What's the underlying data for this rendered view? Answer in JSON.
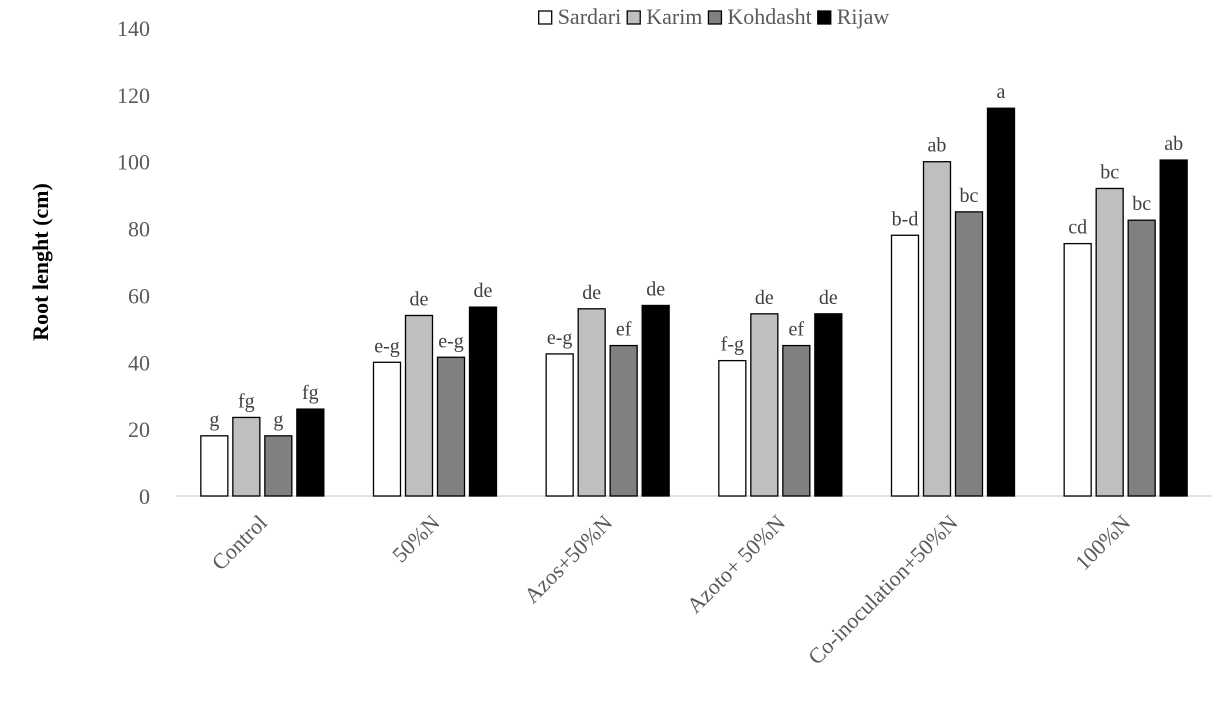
{
  "chart_data": {
    "type": "bar",
    "title": "",
    "xlabel": "",
    "ylabel": "Root lenght (cm)",
    "ylim": [
      0,
      140
    ],
    "yticks": [
      0,
      20,
      40,
      60,
      80,
      100,
      120,
      140
    ],
    "grid": false,
    "legend_position": "top-center",
    "categories": [
      "Control",
      "50%N",
      "Azos+50%N",
      "Azoto+ 50%N",
      "Co-inoculation+50%N",
      "100%N"
    ],
    "series": [
      {
        "name": "Sardari",
        "color": "#ffffff",
        "values": [
          18,
          40,
          42.5,
          40.5,
          78,
          75.5
        ],
        "labels": [
          "g",
          "e-g",
          "e-g",
          "f-g",
          "b-d",
          "cd"
        ]
      },
      {
        "name": "Karim",
        "color": "#bfbfbf",
        "values": [
          23.5,
          54,
          56,
          54.5,
          100,
          92
        ],
        "labels": [
          "fg",
          "de",
          "de",
          "de",
          "ab",
          "bc"
        ]
      },
      {
        "name": "Kohdasht",
        "color": "#808080",
        "values": [
          18,
          41.5,
          45,
          45,
          85,
          82.5
        ],
        "labels": [
          "g",
          "e-g",
          "ef",
          "ef",
          "bc",
          "bc"
        ]
      },
      {
        "name": "Rijaw",
        "color": "#000000",
        "values": [
          26,
          56.5,
          57,
          54.5,
          116,
          100.5
        ],
        "labels": [
          "fg",
          "de",
          "de",
          "de",
          "a",
          "ab"
        ]
      }
    ]
  }
}
